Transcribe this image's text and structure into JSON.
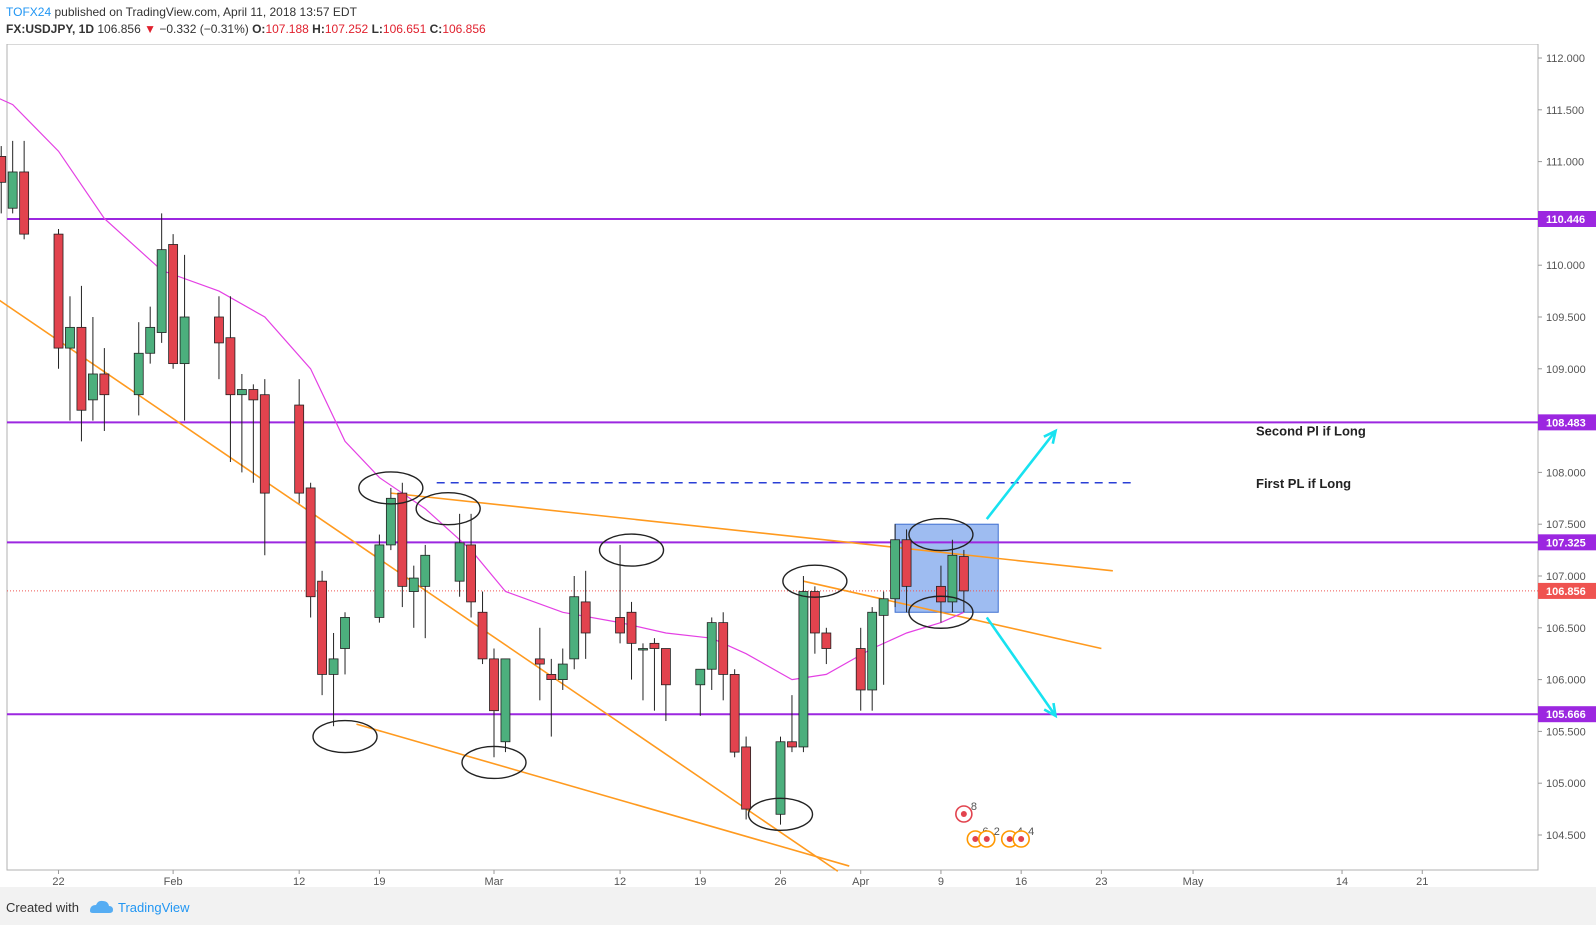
{
  "header": {
    "author": "TOFX24",
    "published": "published on TradingView.com, April 11, 2018 13:57 EDT",
    "symbol": "FX:USDJPY, 1D",
    "last": "106.856",
    "change": "−0.332 (−0.31%)",
    "o_label": "O:",
    "o_value": "107.188",
    "h_label": "H:",
    "h_value": "107.252",
    "l_label": "L:",
    "l_value": "106.651",
    "c_label": "C:",
    "c_value": "106.856"
  },
  "footer": {
    "created_with": "Created with",
    "brand": "TradingView"
  },
  "colors": {
    "bull": "#4caf7d",
    "bear": "#e2434e",
    "level": "#9c27e0",
    "trend": "#ff9a1f",
    "ma": "#e440e4",
    "arrow": "#18e2f0",
    "price_tag": "#ef5350",
    "box": "#7ea6ec"
  },
  "chart_data": {
    "type": "candlestick",
    "ylim": [
      104.2,
      112.2
    ],
    "y_ticks": [
      104.5,
      105.0,
      105.5,
      106.0,
      106.5,
      107.0,
      107.5,
      108.0,
      108.5,
      109.0,
      109.5,
      110.0,
      111.0,
      111.5,
      112.0
    ],
    "y_tick_labels": [
      "104.500",
      "105.000",
      "105.500",
      "106.000",
      "106.500",
      "107.000",
      "107.500",
      "108.000",
      "108.500",
      "109.000",
      "109.500",
      "110.000",
      "111.000",
      "111.500",
      "112.000"
    ],
    "x_ticks": [
      {
        "label": "22",
        "date": "2018-01-22"
      },
      {
        "label": "Feb",
        "date": "2018-02-01"
      },
      {
        "label": "12",
        "date": "2018-02-12"
      },
      {
        "label": "19",
        "date": "2018-02-19"
      },
      {
        "label": "Mar",
        "date": "2018-03-01"
      },
      {
        "label": "12",
        "date": "2018-03-12"
      },
      {
        "label": "19",
        "date": "2018-03-19"
      },
      {
        "label": "26",
        "date": "2018-03-26"
      },
      {
        "label": "Apr",
        "date": "2018-04-02"
      },
      {
        "label": "9",
        "date": "2018-04-09"
      },
      {
        "label": "16",
        "date": "2018-04-16"
      },
      {
        "label": "23",
        "date": "2018-04-23"
      },
      {
        "label": "May",
        "date": "2018-05-01"
      },
      {
        "label": "14",
        "date": "2018-05-14"
      },
      {
        "label": "21",
        "date": "2018-05-21"
      }
    ],
    "candles": [
      {
        "date": "2018-01-16",
        "o": 111.15,
        "h": 111.5,
        "l": 110.7,
        "c": 111.0
      },
      {
        "date": "2018-01-17",
        "o": 111.05,
        "h": 111.15,
        "l": 110.5,
        "c": 110.8
      },
      {
        "date": "2018-01-18",
        "o": 110.55,
        "h": 111.2,
        "l": 110.5,
        "c": 110.9
      },
      {
        "date": "2018-01-19",
        "o": 110.9,
        "h": 111.2,
        "l": 110.25,
        "c": 110.3
      },
      {
        "date": "2018-01-22",
        "o": 110.3,
        "h": 110.35,
        "l": 109.0,
        "c": 109.2
      },
      {
        "date": "2018-01-23",
        "o": 109.2,
        "h": 109.7,
        "l": 108.5,
        "c": 109.4
      },
      {
        "date": "2018-01-24",
        "o": 109.4,
        "h": 109.8,
        "l": 108.3,
        "c": 108.6
      },
      {
        "date": "2018-01-25",
        "o": 108.7,
        "h": 109.5,
        "l": 108.5,
        "c": 108.95
      },
      {
        "date": "2018-01-26",
        "o": 108.95,
        "h": 109.2,
        "l": 108.4,
        "c": 108.75
      },
      {
        "date": "2018-01-29",
        "o": 108.75,
        "h": 109.45,
        "l": 108.55,
        "c": 109.15
      },
      {
        "date": "2018-01-30",
        "o": 109.15,
        "h": 109.6,
        "l": 109.05,
        "c": 109.4
      },
      {
        "date": "2018-01-31",
        "o": 109.35,
        "h": 110.5,
        "l": 109.25,
        "c": 110.15
      },
      {
        "date": "2018-02-01",
        "o": 110.2,
        "h": 110.3,
        "l": 109.0,
        "c": 109.05
      },
      {
        "date": "2018-02-02",
        "o": 109.05,
        "h": 110.1,
        "l": 108.5,
        "c": 109.5
      },
      {
        "date": "2018-02-05",
        "o": 109.5,
        "h": 109.7,
        "l": 108.9,
        "c": 109.25
      },
      {
        "date": "2018-02-06",
        "o": 109.3,
        "h": 109.7,
        "l": 108.1,
        "c": 108.75
      },
      {
        "date": "2018-02-07",
        "o": 108.75,
        "h": 108.95,
        "l": 108.0,
        "c": 108.8
      },
      {
        "date": "2018-02-08",
        "o": 108.8,
        "h": 108.85,
        "l": 107.9,
        "c": 108.7
      },
      {
        "date": "2018-02-09",
        "o": 108.75,
        "h": 108.9,
        "l": 107.2,
        "c": 107.8
      },
      {
        "date": "2018-02-12",
        "o": 108.65,
        "h": 108.9,
        "l": 107.7,
        "c": 107.8
      },
      {
        "date": "2018-02-13",
        "o": 107.85,
        "h": 107.9,
        "l": 106.6,
        "c": 106.8
      },
      {
        "date": "2018-02-14",
        "o": 106.95,
        "h": 107.05,
        "l": 105.85,
        "c": 106.05
      },
      {
        "date": "2018-02-15",
        "o": 106.05,
        "h": 106.45,
        "l": 105.55,
        "c": 106.2
      },
      {
        "date": "2018-02-16",
        "o": 106.3,
        "h": 106.65,
        "l": 106.05,
        "c": 106.6
      },
      {
        "date": "2018-02-19",
        "o": 106.6,
        "h": 107.4,
        "l": 106.55,
        "c": 107.3
      },
      {
        "date": "2018-02-20",
        "o": 107.3,
        "h": 107.85,
        "l": 107.25,
        "c": 107.75
      },
      {
        "date": "2018-02-21",
        "o": 107.8,
        "h": 107.9,
        "l": 106.7,
        "c": 106.9
      },
      {
        "date": "2018-02-22",
        "o": 106.85,
        "h": 107.1,
        "l": 106.5,
        "c": 106.98
      },
      {
        "date": "2018-02-23",
        "o": 106.9,
        "h": 107.3,
        "l": 106.4,
        "c": 107.2
      },
      {
        "date": "2018-02-26",
        "o": 106.95,
        "h": 107.6,
        "l": 106.8,
        "c": 107.32
      },
      {
        "date": "2018-02-27",
        "o": 107.3,
        "h": 107.6,
        "l": 106.6,
        "c": 106.75
      },
      {
        "date": "2018-02-28",
        "o": 106.65,
        "h": 106.85,
        "l": 106.15,
        "c": 106.2
      },
      {
        "date": "2018-03-01",
        "o": 106.2,
        "h": 106.3,
        "l": 105.25,
        "c": 105.7
      },
      {
        "date": "2018-03-02",
        "o": 105.4,
        "h": 106.2,
        "l": 105.3,
        "c": 106.2
      },
      {
        "date": "2018-03-05",
        "o": 106.2,
        "h": 106.5,
        "l": 105.8,
        "c": 106.15
      },
      {
        "date": "2018-03-06",
        "o": 106.05,
        "h": 106.2,
        "l": 105.45,
        "c": 106.0
      },
      {
        "date": "2018-03-07",
        "o": 106.0,
        "h": 106.3,
        "l": 105.9,
        "c": 106.15
      },
      {
        "date": "2018-03-08",
        "o": 106.2,
        "h": 107.0,
        "l": 106.1,
        "c": 106.8
      },
      {
        "date": "2018-03-09",
        "o": 106.75,
        "h": 107.05,
        "l": 106.2,
        "c": 106.45
      },
      {
        "date": "2018-03-12",
        "o": 106.6,
        "h": 107.3,
        "l": 106.35,
        "c": 106.45
      },
      {
        "date": "2018-03-13",
        "o": 106.65,
        "h": 106.75,
        "l": 106.0,
        "c": 106.35
      },
      {
        "date": "2018-03-14",
        "o": 106.3,
        "h": 106.35,
        "l": 105.8,
        "c": 106.3
      },
      {
        "date": "2018-03-15",
        "o": 106.35,
        "h": 106.4,
        "l": 105.7,
        "c": 106.3
      },
      {
        "date": "2018-03-16",
        "o": 106.3,
        "h": 106.3,
        "l": 105.6,
        "c": 105.95
      },
      {
        "date": "2018-03-19",
        "o": 105.95,
        "h": 106.1,
        "l": 105.65,
        "c": 106.1
      },
      {
        "date": "2018-03-20",
        "o": 106.1,
        "h": 106.6,
        "l": 105.9,
        "c": 106.55
      },
      {
        "date": "2018-03-21",
        "o": 106.55,
        "h": 106.65,
        "l": 105.8,
        "c": 106.05
      },
      {
        "date": "2018-03-22",
        "o": 106.05,
        "h": 106.1,
        "l": 105.25,
        "c": 105.3
      },
      {
        "date": "2018-03-23",
        "o": 105.35,
        "h": 105.45,
        "l": 104.65,
        "c": 104.75
      },
      {
        "date": "2018-03-26",
        "o": 104.7,
        "h": 105.45,
        "l": 104.6,
        "c": 105.4
      },
      {
        "date": "2018-03-27",
        "o": 105.4,
        "h": 105.85,
        "l": 105.3,
        "c": 105.35
      },
      {
        "date": "2018-03-28",
        "o": 105.35,
        "h": 107.0,
        "l": 105.3,
        "c": 106.85
      },
      {
        "date": "2018-03-29",
        "o": 106.85,
        "h": 106.9,
        "l": 106.25,
        "c": 106.45
      },
      {
        "date": "2018-03-30",
        "o": 106.45,
        "h": 106.5,
        "l": 106.15,
        "c": 106.3
      },
      {
        "date": "2018-04-02",
        "o": 106.3,
        "h": 106.5,
        "l": 105.7,
        "c": 105.9
      },
      {
        "date": "2018-04-03",
        "o": 105.9,
        "h": 106.7,
        "l": 105.7,
        "c": 106.65
      },
      {
        "date": "2018-04-04",
        "o": 106.62,
        "h": 106.85,
        "l": 105.95,
        "c": 106.78
      },
      {
        "date": "2018-04-05",
        "o": 106.78,
        "h": 107.5,
        "l": 106.7,
        "c": 107.35
      },
      {
        "date": "2018-04-06",
        "o": 107.35,
        "h": 107.45,
        "l": 106.65,
        "c": 106.9
      },
      {
        "date": "2018-04-09",
        "o": 106.9,
        "h": 107.1,
        "l": 106.55,
        "c": 106.75
      },
      {
        "date": "2018-04-10",
        "o": 106.75,
        "h": 107.35,
        "l": 106.65,
        "c": 107.2
      },
      {
        "date": "2018-04-11",
        "o": 107.188,
        "h": 107.252,
        "l": 106.651,
        "c": 106.856
      }
    ],
    "ma": [
      {
        "date": "2018-01-15",
        "v": 111.7
      },
      {
        "date": "2018-01-18",
        "v": 111.55
      },
      {
        "date": "2018-01-22",
        "v": 111.1
      },
      {
        "date": "2018-01-26",
        "v": 110.45
      },
      {
        "date": "2018-01-31",
        "v": 109.95
      },
      {
        "date": "2018-02-05",
        "v": 109.75
      },
      {
        "date": "2018-02-09",
        "v": 109.5
      },
      {
        "date": "2018-02-13",
        "v": 109.0
      },
      {
        "date": "2018-02-16",
        "v": 108.3
      },
      {
        "date": "2018-02-19",
        "v": 107.95
      },
      {
        "date": "2018-02-23",
        "v": 107.65
      },
      {
        "date": "2018-02-27",
        "v": 107.25
      },
      {
        "date": "2018-03-02",
        "v": 106.85
      },
      {
        "date": "2018-03-07",
        "v": 106.65
      },
      {
        "date": "2018-03-12",
        "v": 106.55
      },
      {
        "date": "2018-03-16",
        "v": 106.45
      },
      {
        "date": "2018-03-20",
        "v": 106.4
      },
      {
        "date": "2018-03-23",
        "v": 106.25
      },
      {
        "date": "2018-03-27",
        "v": 106.0
      },
      {
        "date": "2018-03-30",
        "v": 106.05
      },
      {
        "date": "2018-04-03",
        "v": 106.3
      },
      {
        "date": "2018-04-06",
        "v": 106.45
      },
      {
        "date": "2018-04-09",
        "v": 106.55
      },
      {
        "date": "2018-04-11",
        "v": 106.65
      }
    ],
    "levels": [
      {
        "value": 110.446,
        "label": "110.446"
      },
      {
        "value": 108.483,
        "label": "108.483"
      },
      {
        "value": 107.325,
        "label": "107.325"
      },
      {
        "value": 105.666,
        "label": "105.666"
      }
    ],
    "last_price": {
      "value": 106.856,
      "label": "106.856"
    },
    "trendlines": [
      {
        "from": {
          "date": "2018-01-15",
          "v": 109.8
        },
        "to": {
          "date": "2018-03-31",
          "v": 104.15
        }
      },
      {
        "from": {
          "date": "2018-02-17",
          "v": 105.57
        },
        "to": {
          "date": "2018-04-01",
          "v": 104.2
        }
      },
      {
        "from": {
          "date": "2018-02-20",
          "v": 107.8
        },
        "to": {
          "date": "2018-04-24",
          "v": 107.05
        }
      },
      {
        "from": {
          "date": "2018-03-28",
          "v": 106.95
        },
        "to": {
          "date": "2018-04-23",
          "v": 106.3
        }
      }
    ],
    "targets": [
      {
        "date_from": "2018-02-24",
        "date_to": "2018-04-26",
        "value": 107.9,
        "note": "First PL if Long"
      },
      {
        "value": 108.483,
        "note": "Second Pl if Long"
      }
    ],
    "consolidation_box": {
      "date_from": "2018-04-05",
      "date_to": "2018-04-14",
      "low": 106.65,
      "high": 107.5
    },
    "arrows": [
      {
        "from": {
          "date": "2018-04-13",
          "v": 107.55
        },
        "to": {
          "date": "2018-04-19",
          "v": 108.4
        }
      },
      {
        "from": {
          "date": "2018-04-13",
          "v": 106.6
        },
        "to": {
          "date": "2018-04-19",
          "v": 105.65
        }
      }
    ],
    "ellipses": [
      {
        "date": "2018-02-20",
        "v": 107.85
      },
      {
        "date": "2018-02-25",
        "v": 107.65
      },
      {
        "date": "2018-03-13",
        "v": 107.25
      },
      {
        "date": "2018-03-29",
        "v": 106.95
      },
      {
        "date": "2018-02-16",
        "v": 105.45
      },
      {
        "date": "2018-03-01",
        "v": 105.2
      },
      {
        "date": "2018-03-26",
        "v": 104.7
      },
      {
        "date": "2018-04-09",
        "v": 107.4
      },
      {
        "date": "2018-04-09",
        "v": 106.65
      }
    ],
    "events": [
      {
        "date": "2018-04-11",
        "count": "8"
      },
      {
        "date": "2018-04-12",
        "count": "6"
      },
      {
        "date": "2018-04-13",
        "count": "2"
      },
      {
        "date": "2018-04-15",
        "count": "4"
      },
      {
        "date": "2018-04-16",
        "count": "4"
      }
    ]
  }
}
